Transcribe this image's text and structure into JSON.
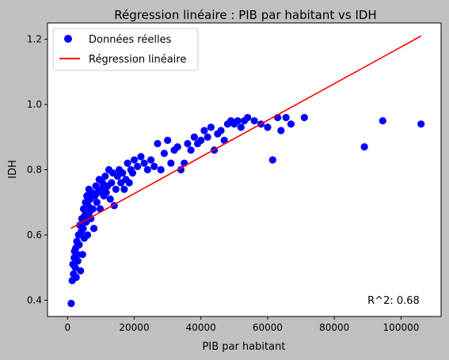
{
  "chart_data": {
    "type": "scatter",
    "title": "Régression linéaire : PIB par habitant vs IDH",
    "xlabel": "PIB par habitant",
    "ylabel": "IDH",
    "xlim": [
      -6000,
      112000
    ],
    "ylim": [
      0.35,
      1.25
    ],
    "xticks": [
      0,
      20000,
      40000,
      60000,
      80000,
      100000
    ],
    "yticks": [
      0.4,
      0.6,
      0.8,
      1.0,
      1.2
    ],
    "xtick_labels": [
      "0",
      "20000",
      "40000",
      "60000",
      "80000",
      "100000"
    ],
    "ytick_labels": [
      "0.4",
      "0.6",
      "0.8",
      "1.0",
      "1.2"
    ],
    "grid": false,
    "legend": {
      "placement": "top-left",
      "entries": [
        "Données réelles",
        "Régression linéaire"
      ]
    },
    "annotation": "R^2: 0.68",
    "colors": {
      "points": "#0000ff",
      "line": "#ff0000",
      "background": "#c0c0c0",
      "plot_area": "#ffffff"
    },
    "series": [
      {
        "name": "Données réelles",
        "kind": "scatter",
        "points": [
          [
            1100,
            0.39
          ],
          [
            1400,
            0.46
          ],
          [
            1600,
            0.51
          ],
          [
            1800,
            0.48
          ],
          [
            2000,
            0.53
          ],
          [
            2100,
            0.55
          ],
          [
            2300,
            0.5
          ],
          [
            2500,
            0.56
          ],
          [
            2600,
            0.47
          ],
          [
            2800,
            0.58
          ],
          [
            3000,
            0.54
          ],
          [
            3100,
            0.52
          ],
          [
            3300,
            0.6
          ],
          [
            3500,
            0.57
          ],
          [
            3700,
            0.63
          ],
          [
            3900,
            0.49
          ],
          [
            4100,
            0.61
          ],
          [
            4300,
            0.65
          ],
          [
            4500,
            0.54
          ],
          [
            4700,
            0.62
          ],
          [
            4800,
            0.68
          ],
          [
            5000,
            0.59
          ],
          [
            5200,
            0.66
          ],
          [
            5400,
            0.7
          ],
          [
            5600,
            0.64
          ],
          [
            5800,
            0.72
          ],
          [
            6000,
            0.6
          ],
          [
            6200,
            0.69
          ],
          [
            6400,
            0.74
          ],
          [
            6600,
            0.67
          ],
          [
            6800,
            0.71
          ],
          [
            7000,
            0.65
          ],
          [
            7300,
            0.73
          ],
          [
            7600,
            0.68
          ],
          [
            7900,
            0.62
          ],
          [
            8200,
            0.72
          ],
          [
            8500,
            0.75
          ],
          [
            8800,
            0.7
          ],
          [
            9100,
            0.73
          ],
          [
            9500,
            0.77
          ],
          [
            9800,
            0.68
          ],
          [
            10200,
            0.74
          ],
          [
            10500,
            0.76
          ],
          [
            10900,
            0.72
          ],
          [
            11300,
            0.78
          ],
          [
            11600,
            0.73
          ],
          [
            12000,
            0.75
          ],
          [
            12400,
            0.8
          ],
          [
            12800,
            0.71
          ],
          [
            13200,
            0.76
          ],
          [
            13600,
            0.79
          ],
          [
            14000,
            0.69
          ],
          [
            14500,
            0.74
          ],
          [
            15000,
            0.78
          ],
          [
            15500,
            0.8
          ],
          [
            16000,
            0.76
          ],
          [
            16500,
            0.79
          ],
          [
            17000,
            0.74
          ],
          [
            17500,
            0.77
          ],
          [
            18000,
            0.82
          ],
          [
            18500,
            0.76
          ],
          [
            19000,
            0.8
          ],
          [
            19500,
            0.79
          ],
          [
            20000,
            0.83
          ],
          [
            21000,
            0.81
          ],
          [
            22000,
            0.84
          ],
          [
            23000,
            0.82
          ],
          [
            24000,
            0.8
          ],
          [
            25000,
            0.83
          ],
          [
            26000,
            0.81
          ],
          [
            27000,
            0.88
          ],
          [
            28000,
            0.8
          ],
          [
            29000,
            0.85
          ],
          [
            30000,
            0.89
          ],
          [
            31000,
            0.82
          ],
          [
            32000,
            0.86
          ],
          [
            33000,
            0.87
          ],
          [
            34000,
            0.8
          ],
          [
            35000,
            0.82
          ],
          [
            36000,
            0.88
          ],
          [
            37000,
            0.86
          ],
          [
            38000,
            0.9
          ],
          [
            39000,
            0.88
          ],
          [
            40000,
            0.89
          ],
          [
            41000,
            0.92
          ],
          [
            42000,
            0.9
          ],
          [
            43000,
            0.93
          ],
          [
            44000,
            0.86
          ],
          [
            45000,
            0.91
          ],
          [
            46000,
            0.92
          ],
          [
            47000,
            0.89
          ],
          [
            48000,
            0.94
          ],
          [
            49000,
            0.95
          ],
          [
            50000,
            0.94
          ],
          [
            51000,
            0.95
          ],
          [
            52000,
            0.93
          ],
          [
            53000,
            0.95
          ],
          [
            54000,
            0.96
          ],
          [
            56000,
            0.95
          ],
          [
            58000,
            0.94
          ],
          [
            60000,
            0.93
          ],
          [
            61500,
            0.83
          ],
          [
            63000,
            0.96
          ],
          [
            64000,
            0.92
          ],
          [
            65500,
            0.96
          ],
          [
            67000,
            0.94
          ],
          [
            71000,
            0.96
          ],
          [
            89000,
            0.87
          ],
          [
            94500,
            0.95
          ],
          [
            106000,
            0.94
          ]
        ]
      },
      {
        "name": "Régression linéaire",
        "kind": "line",
        "points": [
          [
            1000,
            0.62
          ],
          [
            106000,
            1.21
          ]
        ]
      }
    ]
  }
}
